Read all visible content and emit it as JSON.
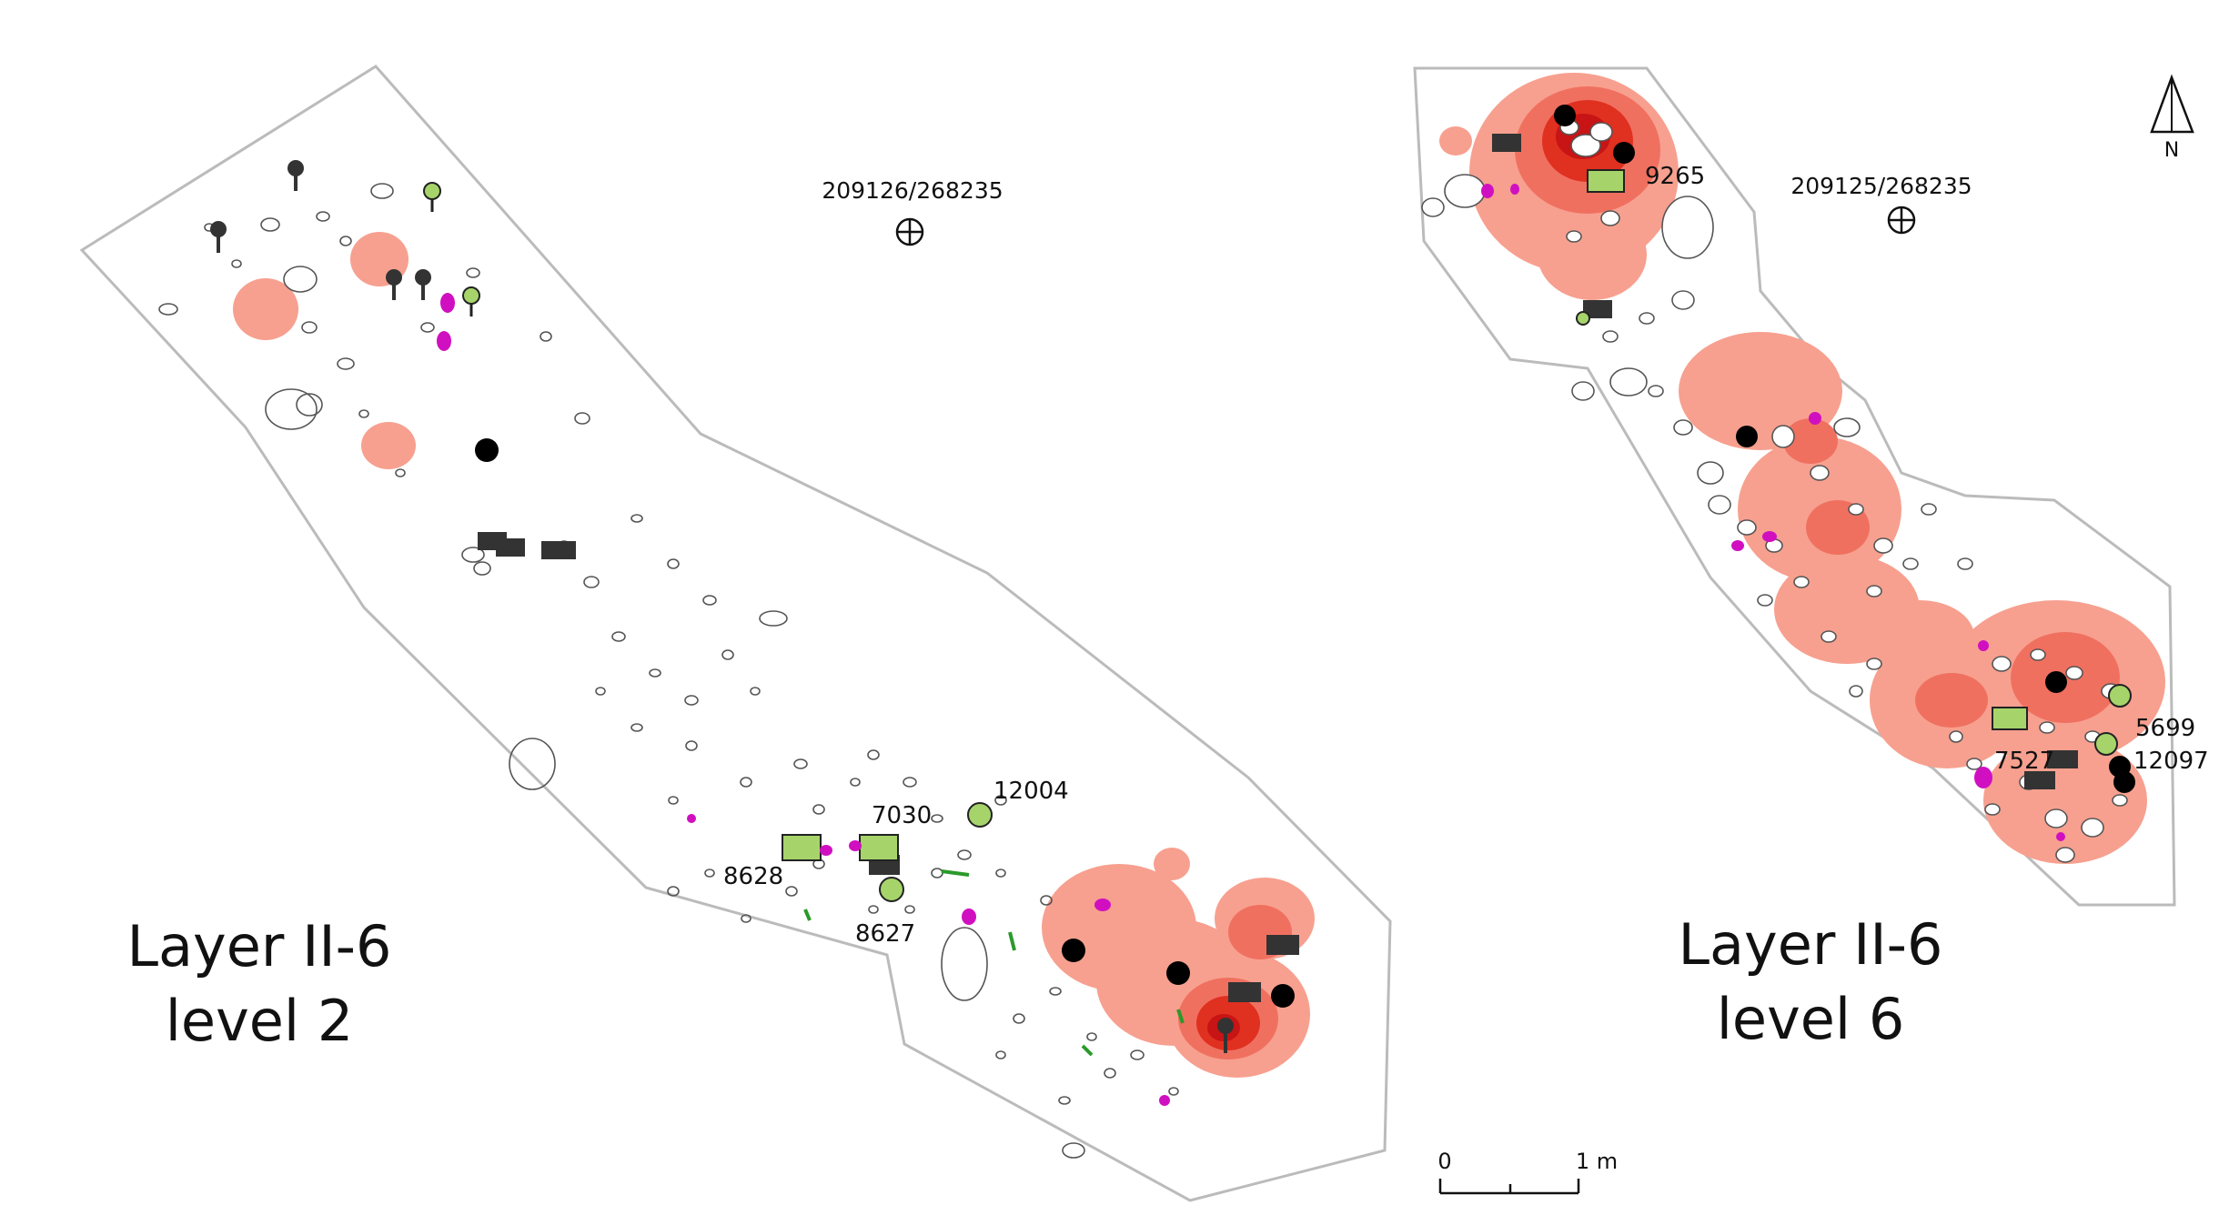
{
  "maps": [
    {
      "name": "layer-ii-6-level-2",
      "title_line1": "Layer II-6",
      "title_line2": "level 2",
      "datum_label": "209126/268235",
      "find_labels": [
        "12004",
        "7030",
        "8628",
        "8627"
      ]
    },
    {
      "name": "layer-ii-6-level-6",
      "title_line1": "Layer II-6",
      "title_line2": "level 6",
      "datum_label": "209125/268235",
      "find_labels": [
        "9265",
        "5699",
        "7527",
        "12097"
      ]
    }
  ],
  "north_arrow": {
    "label": "N"
  },
  "scale_bar": {
    "start_label": "0",
    "end_label": "1 m"
  },
  "colors": {
    "heat_light": "#f7a08f",
    "heat_mid": "#f07060",
    "heat_dark": "#e03020",
    "heat_core": "#c81414",
    "green_marker": "#a6d46a",
    "dark_marker": "#333333",
    "black_marker": "#000000",
    "magenta_marker": "#d010c0",
    "green_line": "#2a9a2a",
    "outline": "#bbbbbb"
  },
  "icons": [
    "north-arrow-icon",
    "datum-crosshair-icon",
    "pin-marker-icon"
  ]
}
